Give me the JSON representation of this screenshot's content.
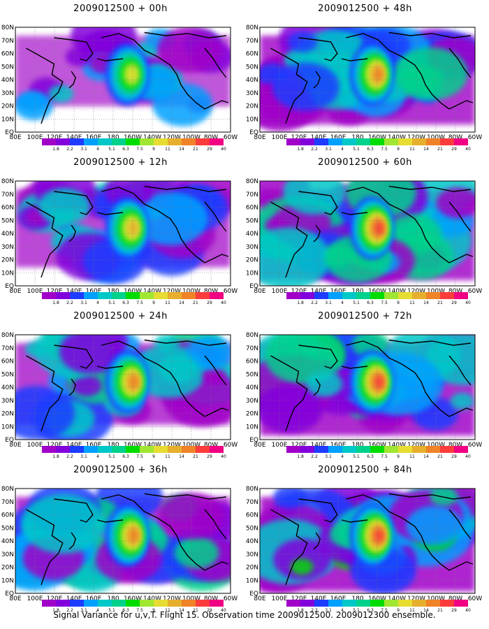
{
  "panels": [
    {
      "title": "2009012500 + 00h",
      "intensity": 0.35,
      "extent": 0.35
    },
    {
      "title": "2009012500 + 48h",
      "intensity": 0.6,
      "extent": 0.85
    },
    {
      "title": "2009012500 + 12h",
      "intensity": 0.45,
      "extent": 0.55
    },
    {
      "title": "2009012500 + 60h",
      "intensity": 0.65,
      "extent": 0.9
    },
    {
      "title": "2009012500 + 24h",
      "intensity": 0.55,
      "extent": 0.65
    },
    {
      "title": "2009012500 + 72h",
      "intensity": 0.7,
      "extent": 0.95
    },
    {
      "title": "2009012500 + 36h",
      "intensity": 0.6,
      "extent": 0.75
    },
    {
      "title": "2009012500 + 84h",
      "intensity": 0.75,
      "extent": 1.0
    }
  ],
  "y_axis_labels": [
    "80N",
    "70N",
    "60N",
    "50N",
    "40N",
    "30N",
    "20N",
    "10N",
    "EQ"
  ],
  "x_axis_labels": [
    "80E",
    "100E",
    "120E",
    "140E",
    "160E",
    "180",
    "160W",
    "140W",
    "120W",
    "100W",
    "80W",
    "60W"
  ],
  "colorbar": {
    "labels": [
      "1.8",
      "2.2",
      "3.1",
      "4",
      "5.1",
      "6.3",
      "7.5",
      "9",
      "11",
      "14",
      "21",
      "29",
      "40"
    ],
    "colors": [
      "#a000c8",
      "#8200dc",
      "#1e3cff",
      "#00a0ff",
      "#00c8c8",
      "#00d28c",
      "#00dc00",
      "#a0e632",
      "#e6dc32",
      "#e6af2d",
      "#f08228",
      "#fa3c3c",
      "#f00082"
    ]
  },
  "caption": "Signal Variance for u,v,T. Flight 15. Observation time 2009012500. 2009012300 ensemble."
}
